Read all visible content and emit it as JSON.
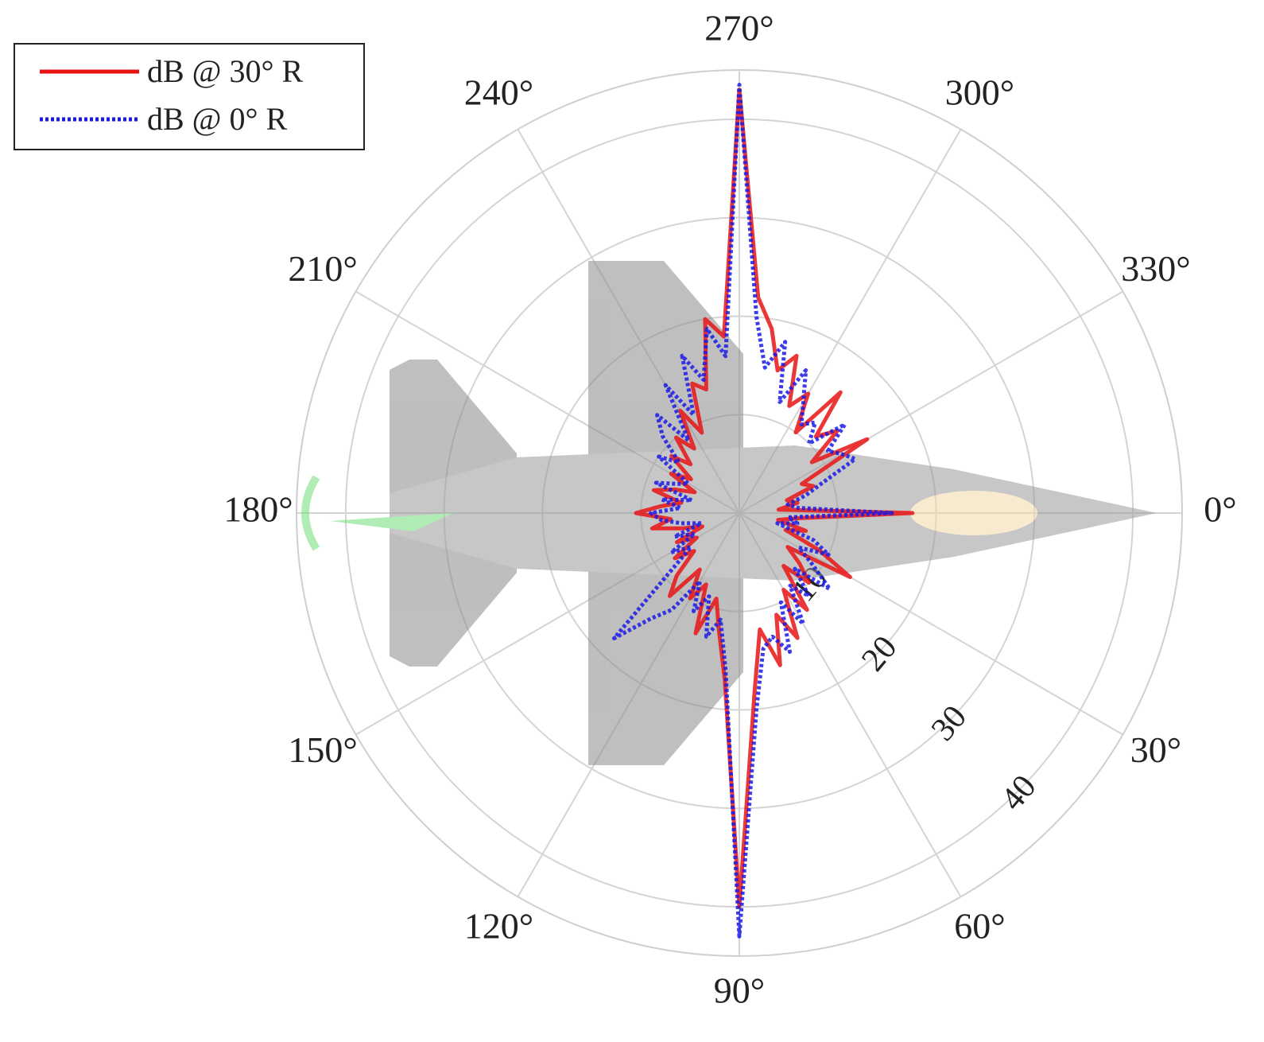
{
  "chart_data": {
    "type": "polar",
    "theta_direction": "clockwise",
    "theta_zero": "right",
    "rlim": [
      0,
      45
    ],
    "rticks": [
      10,
      20,
      30,
      40
    ],
    "thetaticks": [
      {
        "value": 0,
        "label": "0°"
      },
      {
        "value": 30,
        "label": "30°"
      },
      {
        "value": 60,
        "label": "60°"
      },
      {
        "value": 90,
        "label": "90°"
      },
      {
        "value": 120,
        "label": "120°"
      },
      {
        "value": 150,
        "label": "150°"
      },
      {
        "value": 180,
        "label": "180°"
      },
      {
        "value": 210,
        "label": "210°"
      },
      {
        "value": 240,
        "label": "240°"
      },
      {
        "value": 270,
        "label": "270°"
      },
      {
        "value": 300,
        "label": "300°"
      },
      {
        "value": 330,
        "label": "330°"
      }
    ],
    "grid": true,
    "legend": "top-left",
    "theta": [
      0,
      5,
      10,
      15,
      20,
      25,
      30,
      35,
      40,
      45,
      50,
      55,
      60,
      65,
      70,
      75,
      80,
      85,
      90,
      95,
      100,
      105,
      110,
      115,
      120,
      125,
      130,
      135,
      140,
      145,
      150,
      155,
      160,
      165,
      170,
      175,
      180,
      185,
      190,
      195,
      200,
      205,
      210,
      215,
      220,
      225,
      230,
      235,
      240,
      245,
      250,
      255,
      260,
      265,
      270,
      275,
      280,
      285,
      290,
      295,
      300,
      305,
      310,
      315,
      320,
      325,
      330,
      335,
      340,
      345,
      350,
      355
    ],
    "series": [
      {
        "name": "dB @ 30° R",
        "color": "#e81414",
        "style": "solid",
        "values": [
          17.6,
          6,
          4,
          7,
          5,
          9,
          13,
          6,
          8,
          10,
          7,
          12,
          9,
          14,
          11,
          16,
          12,
          18,
          40,
          17,
          12,
          9,
          13,
          8,
          10,
          7,
          11,
          9,
          6,
          8,
          5,
          7,
          4,
          6,
          9,
          7,
          10.5,
          8,
          6,
          9,
          7,
          5,
          8,
          6,
          9,
          7,
          10,
          8,
          12,
          9,
          14,
          13,
          20,
          18,
          43,
          22,
          19,
          15,
          17,
          12,
          14,
          10,
          16,
          11,
          13,
          9,
          15,
          7,
          8,
          5,
          6,
          4
        ]
      },
      {
        "name": "dB @ 0° R",
        "color": "#1a1ae6",
        "style": "dotted",
        "values": [
          15.5,
          5,
          6,
          4,
          8,
          10,
          7,
          9,
          12,
          8,
          11,
          9,
          13,
          10,
          15,
          13,
          14,
          20,
          43,
          16,
          11,
          13,
          9,
          11,
          8,
          12,
          14,
          18,
          9,
          6,
          8,
          5,
          7,
          4,
          6,
          8,
          9,
          6,
          8,
          5,
          9,
          7,
          6,
          10,
          8,
          11,
          13,
          9,
          15,
          11,
          17,
          14,
          19,
          16,
          43.5,
          20,
          15,
          18,
          12,
          16,
          13,
          11,
          12,
          10,
          14,
          11,
          12,
          13,
          9,
          7,
          5,
          6
        ]
      }
    ]
  }
}
